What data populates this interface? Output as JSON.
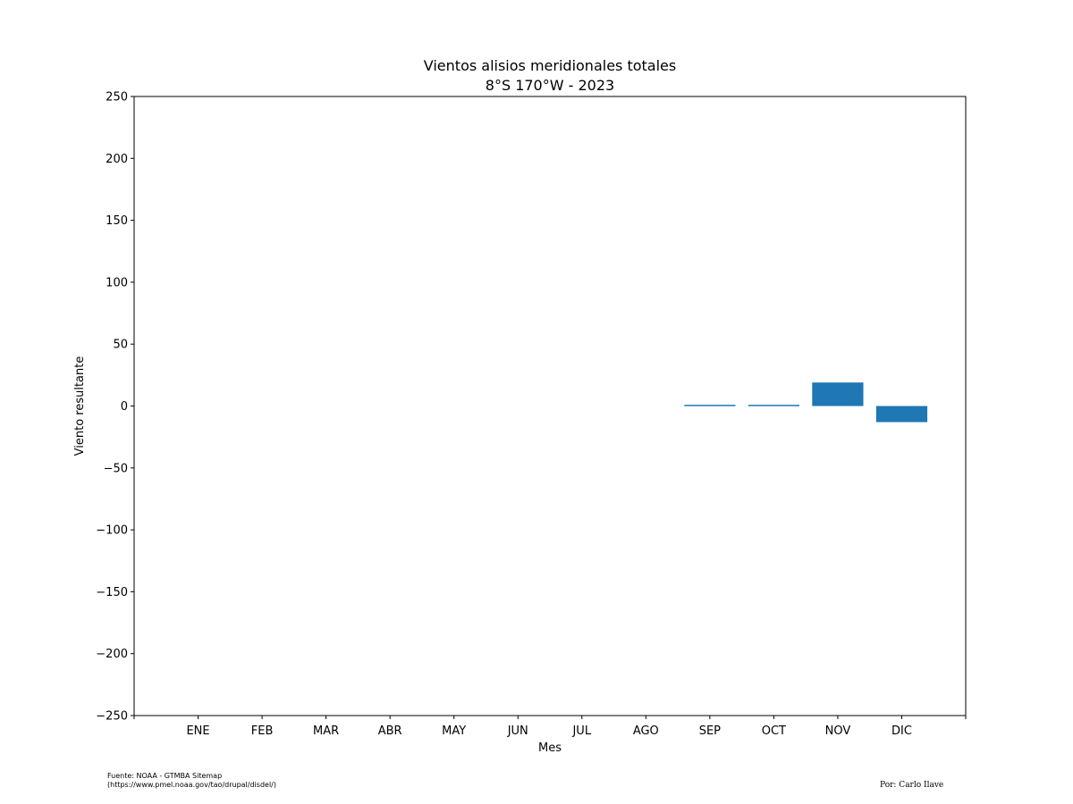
{
  "chart_data": {
    "type": "bar",
    "title": "Vientos alisios meridionales totales",
    "subtitle": "8°S 170°W - 2023",
    "xlabel": "Mes",
    "ylabel": "Viento resultante",
    "categories": [
      "ENE",
      "FEB",
      "MAR",
      "ABR",
      "MAY",
      "JUN",
      "JUL",
      "AGO",
      "SEP",
      "OCT",
      "NOV",
      "DIC"
    ],
    "values": [
      null,
      null,
      null,
      null,
      null,
      null,
      null,
      null,
      1,
      1,
      19,
      -13
    ],
    "ylim": [
      -250,
      250
    ],
    "yticks": [
      -250,
      -200,
      -150,
      -100,
      -50,
      0,
      50,
      100,
      150,
      200,
      250
    ],
    "bar_color": "#1f77b4",
    "grid": false
  },
  "footer": {
    "source_line1": "Fuente: NOAA - GTMBA Sitemap",
    "source_line2": "(https://www.pmel.noaa.gov/tao/drupal/disdel/)",
    "credit": "Por: Carlo Ilave"
  }
}
